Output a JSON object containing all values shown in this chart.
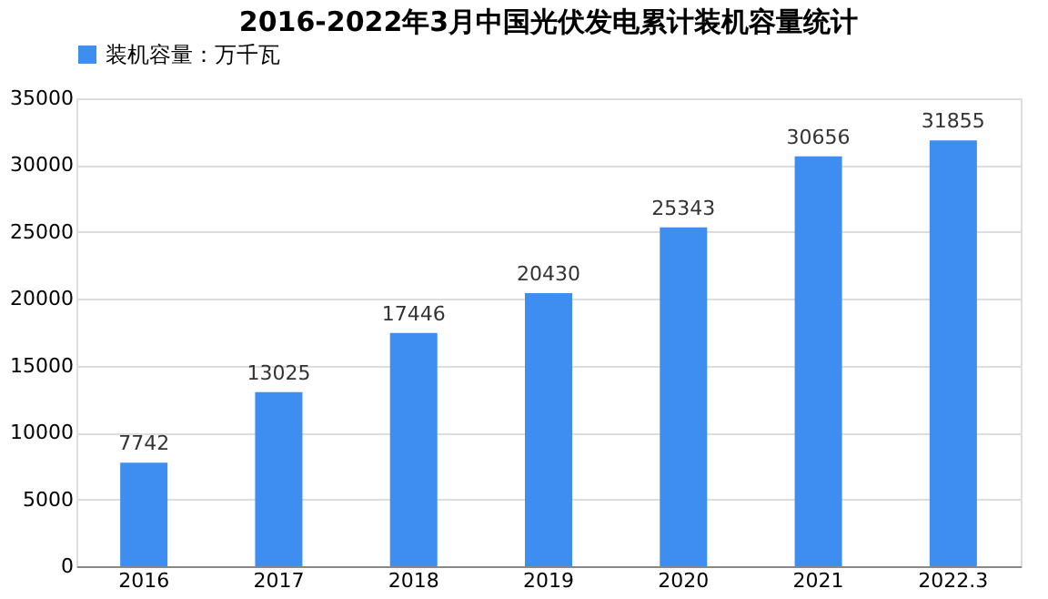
{
  "chart_data": {
    "type": "bar",
    "title": "2016-2022年3月中国光伏发电累计装机容量统计",
    "categories": [
      "2016",
      "2017",
      "2018",
      "2019",
      "2020",
      "2021",
      "2022.3"
    ],
    "series": [
      {
        "name": "装机容量：万千瓦",
        "color": "#3d8ef0",
        "values": [
          7742,
          13025,
          17446,
          20430,
          25343,
          30656,
          31855
        ]
      }
    ],
    "ylim": [
      0,
      35000
    ],
    "yticks": [
      0,
      5000,
      10000,
      15000,
      20000,
      25000,
      30000,
      35000
    ],
    "grid": "y",
    "legend": "top",
    "data_labels": true
  }
}
